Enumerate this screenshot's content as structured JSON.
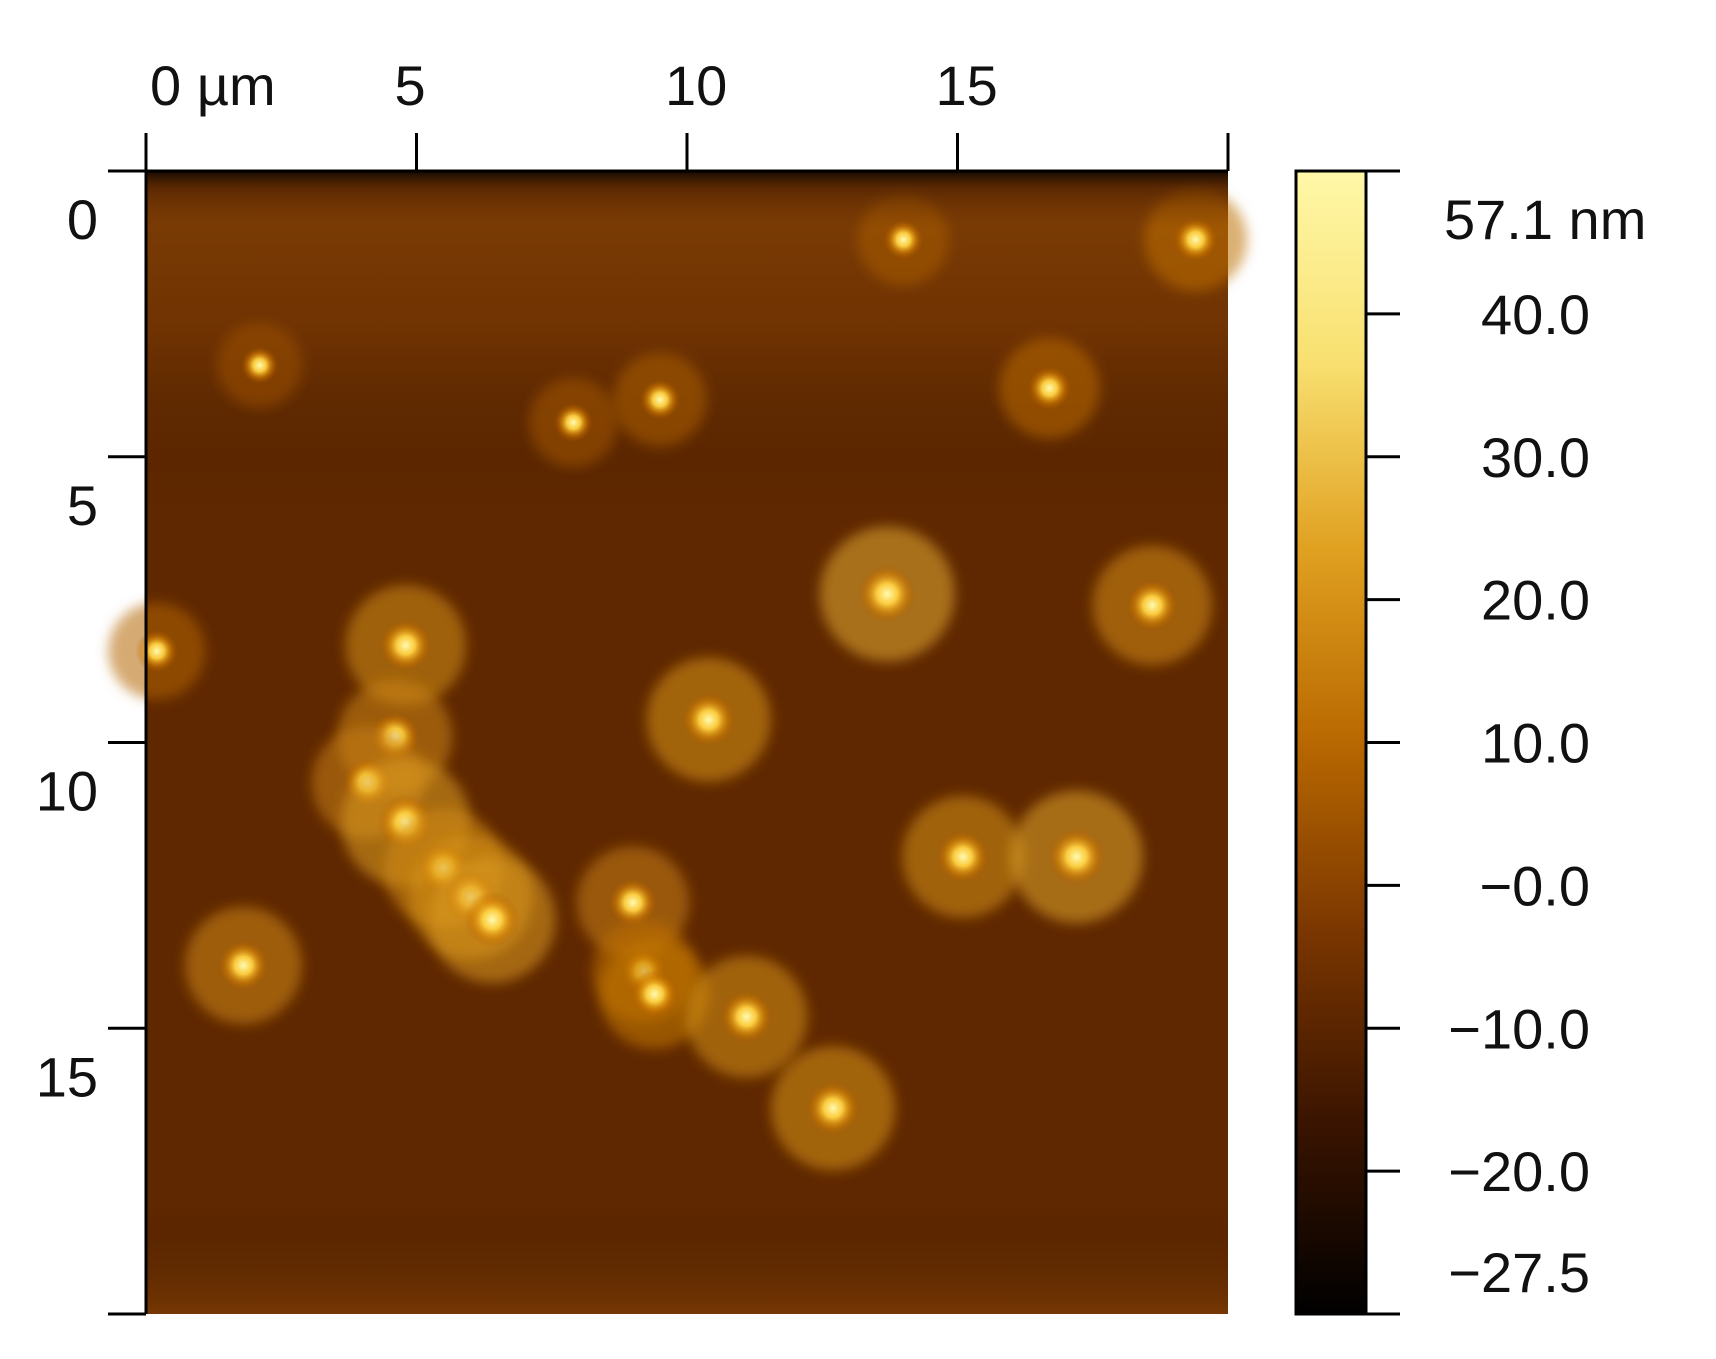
{
  "chart_data": {
    "type": "heatmap",
    "title": "",
    "x_axis": {
      "range": [
        0,
        20
      ],
      "ticks": [
        0,
        5,
        10,
        15
      ],
      "tick_labels": [
        "0 µm",
        "5",
        "10",
        "15"
      ],
      "position": "top"
    },
    "y_axis": {
      "range": [
        0,
        20
      ],
      "ticks": [
        0,
        5,
        10,
        15
      ],
      "tick_labels": [
        "0",
        "5",
        "10",
        "15"
      ],
      "direction": "downward"
    },
    "colorbar": {
      "range": [
        -27.5,
        57.1
      ],
      "unit": "nm",
      "ticks": [
        57.1,
        40.0,
        30.0,
        20.0,
        10.0,
        -0.0,
        -10.0,
        -20.0,
        -27.5
      ],
      "tick_labels": [
        "57.1 nm",
        "40.0",
        "30.0",
        "20.0",
        "10.0",
        "−0.0",
        "−10.0",
        "−20.0",
        "−27.5"
      ],
      "colors": [
        "#000000",
        "#3a1400",
        "#7a3600",
        "#b86800",
        "#e0a020",
        "#f8e070",
        "#fff8a8"
      ],
      "position": "right"
    },
    "background": {
      "height_nm": -5
    },
    "features": [
      {
        "x": 1.8,
        "y": 13.9,
        "height_nm": 42
      },
      {
        "x": 4.8,
        "y": 8.3,
        "height_nm": 45
      },
      {
        "x": 4.6,
        "y": 9.9,
        "height_nm": 40
      },
      {
        "x": 4.1,
        "y": 10.7,
        "height_nm": 38
      },
      {
        "x": 4.8,
        "y": 11.4,
        "height_nm": 52
      },
      {
        "x": 5.5,
        "y": 12.2,
        "height_nm": 44
      },
      {
        "x": 6.0,
        "y": 12.7,
        "height_nm": 48
      },
      {
        "x": 6.4,
        "y": 13.1,
        "height_nm": 50
      },
      {
        "x": 7.9,
        "y": 4.4,
        "height_nm": 18
      },
      {
        "x": 9.5,
        "y": 4.0,
        "height_nm": 22
      },
      {
        "x": 9.0,
        "y": 12.8,
        "height_nm": 38
      },
      {
        "x": 9.2,
        "y": 14.0,
        "height_nm": 30
      },
      {
        "x": 9.4,
        "y": 14.4,
        "height_nm": 36
      },
      {
        "x": 10.4,
        "y": 9.6,
        "height_nm": 48
      },
      {
        "x": 11.1,
        "y": 14.8,
        "height_nm": 46
      },
      {
        "x": 12.7,
        "y": 16.4,
        "height_nm": 48
      },
      {
        "x": 13.7,
        "y": 7.4,
        "height_nm": 57
      },
      {
        "x": 15.1,
        "y": 12.0,
        "height_nm": 46
      },
      {
        "x": 16.7,
        "y": 3.8,
        "height_nm": 28
      },
      {
        "x": 17.2,
        "y": 12.0,
        "height_nm": 55
      },
      {
        "x": 18.6,
        "y": 7.6,
        "height_nm": 44
      },
      {
        "x": 19.4,
        "y": 1.2,
        "height_nm": 30
      },
      {
        "x": 14.0,
        "y": 1.2,
        "height_nm": 20
      },
      {
        "x": 2.1,
        "y": 3.4,
        "height_nm": 15
      },
      {
        "x": 0.2,
        "y": 8.4,
        "height_nm": 25
      }
    ]
  }
}
